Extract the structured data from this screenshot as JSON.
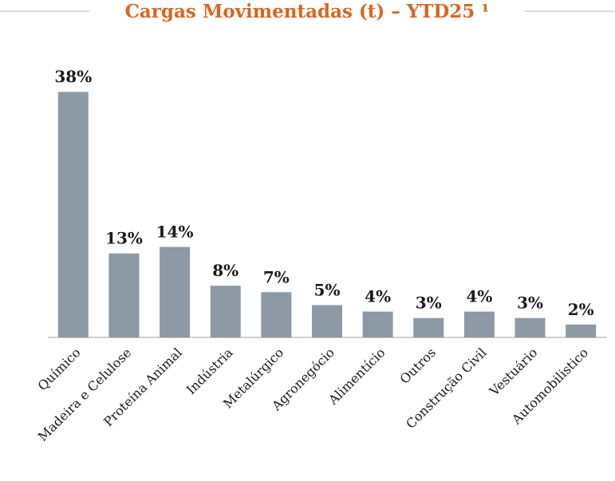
{
  "chart_data": {
    "type": "bar",
    "title": "Cargas Movimentadas (t) – YTD25 ¹",
    "categories": [
      "Químico",
      "Madeira e Celulose",
      "Proteína Animal",
      "Indústria",
      "Metalúrgico",
      "Agronegócio",
      "Alimentício",
      "Outros",
      "Construção Civil",
      "Vestuário",
      "Automobilistico"
    ],
    "values": [
      38,
      13,
      14,
      8,
      7,
      5,
      4,
      3,
      4,
      3,
      2
    ],
    "value_labels": [
      "38%",
      "13%",
      "14%",
      "8%",
      "7%",
      "5%",
      "4%",
      "3%",
      "4%",
      "3%",
      "2%"
    ],
    "color": "#8d99a4"
  }
}
